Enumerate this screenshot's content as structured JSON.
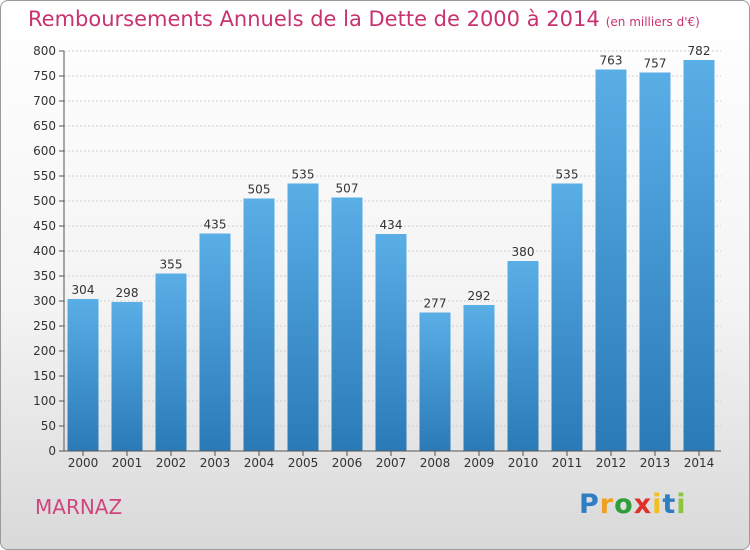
{
  "chart_data": {
    "type": "bar",
    "title": "Remboursements Annuels de la Dette de 2000 à 2014",
    "subtitle": "(en milliers d'€)",
    "categories": [
      "2000",
      "2001",
      "2002",
      "2003",
      "2004",
      "2005",
      "2006",
      "2007",
      "2008",
      "2009",
      "2010",
      "2011",
      "2012",
      "2013",
      "2014"
    ],
    "values": [
      304,
      298,
      355,
      435,
      505,
      535,
      507,
      434,
      277,
      292,
      380,
      535,
      763,
      757,
      782
    ],
    "ylim": [
      0,
      800
    ],
    "yticks": [
      0,
      50,
      100,
      150,
      200,
      250,
      300,
      350,
      400,
      450,
      500,
      550,
      600,
      650,
      700,
      750,
      800
    ],
    "xlabel": "",
    "ylabel": "",
    "grid": true,
    "bar_color_top": "#5aaee6",
    "bar_color_bottom": "#2a7ab8"
  },
  "town": "MARNAZ",
  "brand": {
    "letters": [
      "P",
      "r",
      "o",
      "x",
      "i",
      "t",
      "i"
    ],
    "colors": [
      "#2f7ec3",
      "#f0a020",
      "#2f9e3a",
      "#e0302a",
      "#f0c020",
      "#2f7ec3",
      "#8cc63f"
    ]
  }
}
